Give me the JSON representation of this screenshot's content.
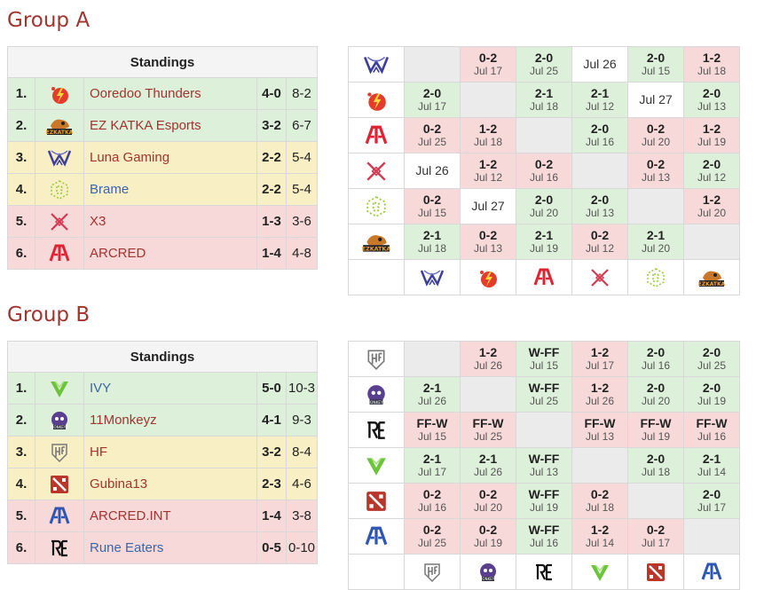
{
  "groups": [
    {
      "title": "Group A",
      "standings_header": "Standings",
      "standings": [
        {
          "rank": "1.",
          "team": "Ooredoo Thunders",
          "score": "4-0",
          "games": "8-2",
          "color": "green",
          "name_color": "red",
          "logo": "thunder-logo"
        },
        {
          "rank": "2.",
          "team": "EZ KATKA Esports",
          "score": "3-2",
          "games": "6-7",
          "color": "green",
          "name_color": "red",
          "logo": "ezkatka-logo"
        },
        {
          "rank": "3.",
          "team": "Luna Gaming",
          "score": "2-2",
          "games": "5-4",
          "color": "yellow",
          "name_color": "red",
          "logo": "luna-logo"
        },
        {
          "rank": "4.",
          "team": "Brame",
          "score": "2-2",
          "games": "5-4",
          "color": "yellow",
          "name_color": "blue",
          "logo": "brame-logo"
        },
        {
          "rank": "5.",
          "team": "X3",
          "score": "1-3",
          "games": "3-6",
          "color": "red",
          "name_color": "red",
          "logo": "x3-logo"
        },
        {
          "rank": "6.",
          "team": "ARCRED",
          "score": "1-4",
          "games": "4-8",
          "color": "red",
          "name_color": "red",
          "logo": "arcred-logo"
        }
      ],
      "matrix_row_logos": [
        "luna-logo",
        "thunder-logo",
        "arcred-logo",
        "x3-logo",
        "brame-logo",
        "ezkatka-logo"
      ],
      "matrix_col_logos": [
        "luna-logo",
        "thunder-logo",
        "arcred-logo",
        "x3-logo",
        "brame-logo",
        "ezkatka-logo"
      ],
      "matrix": [
        [
          {
            "t": "e"
          },
          {
            "t": "r",
            "s": "0-2",
            "d": "Jul 17"
          },
          {
            "t": "g",
            "s": "2-0",
            "d": "Jul 25"
          },
          {
            "t": "w",
            "d": "Jul 26"
          },
          {
            "t": "g",
            "s": "2-0",
            "d": "Jul 15"
          },
          {
            "t": "r",
            "s": "1-2",
            "d": "Jul 18"
          }
        ],
        [
          {
            "t": "g",
            "s": "2-0",
            "d": "Jul 17"
          },
          {
            "t": "e"
          },
          {
            "t": "g",
            "s": "2-1",
            "d": "Jul 18"
          },
          {
            "t": "g",
            "s": "2-1",
            "d": "Jul 12"
          },
          {
            "t": "w",
            "d": "Jul 27"
          },
          {
            "t": "g",
            "s": "2-0",
            "d": "Jul 13"
          }
        ],
        [
          {
            "t": "r",
            "s": "0-2",
            "d": "Jul 25"
          },
          {
            "t": "r",
            "s": "1-2",
            "d": "Jul 18"
          },
          {
            "t": "e"
          },
          {
            "t": "g",
            "s": "2-0",
            "d": "Jul 16"
          },
          {
            "t": "r",
            "s": "0-2",
            "d": "Jul 20"
          },
          {
            "t": "r",
            "s": "1-2",
            "d": "Jul 19"
          }
        ],
        [
          {
            "t": "w",
            "d": "Jul 26"
          },
          {
            "t": "r",
            "s": "1-2",
            "d": "Jul 12"
          },
          {
            "t": "r",
            "s": "0-2",
            "d": "Jul 16"
          },
          {
            "t": "e"
          },
          {
            "t": "r",
            "s": "0-2",
            "d": "Jul 13"
          },
          {
            "t": "g",
            "s": "2-0",
            "d": "Jul 12"
          }
        ],
        [
          {
            "t": "r",
            "s": "0-2",
            "d": "Jul 15"
          },
          {
            "t": "w",
            "d": "Jul 27"
          },
          {
            "t": "g",
            "s": "2-0",
            "d": "Jul 20"
          },
          {
            "t": "g",
            "s": "2-0",
            "d": "Jul 13"
          },
          {
            "t": "e"
          },
          {
            "t": "r",
            "s": "1-2",
            "d": "Jul 20"
          }
        ],
        [
          {
            "t": "g",
            "s": "2-1",
            "d": "Jul 18"
          },
          {
            "t": "r",
            "s": "0-2",
            "d": "Jul 13"
          },
          {
            "t": "g",
            "s": "2-1",
            "d": "Jul 19"
          },
          {
            "t": "r",
            "s": "0-2",
            "d": "Jul 12"
          },
          {
            "t": "g",
            "s": "2-1",
            "d": "Jul 20"
          },
          {
            "t": "e"
          }
        ]
      ]
    },
    {
      "title": "Group B",
      "standings_header": "Standings",
      "standings": [
        {
          "rank": "1.",
          "team": "IVY",
          "score": "5-0",
          "games": "10-3",
          "color": "green",
          "name_color": "blue",
          "logo": "ivy-logo"
        },
        {
          "rank": "2.",
          "team": "11Monkeyz",
          "score": "4-1",
          "games": "9-3",
          "color": "green",
          "name_color": "red",
          "logo": "monkeyz-logo"
        },
        {
          "rank": "3.",
          "team": "HF",
          "score": "3-2",
          "games": "8-4",
          "color": "yellow",
          "name_color": "red",
          "logo": "hf-logo"
        },
        {
          "rank": "4.",
          "team": "Gubina13",
          "score": "2-3",
          "games": "4-6",
          "color": "yellow",
          "name_color": "red",
          "logo": "dota-logo"
        },
        {
          "rank": "5.",
          "team": "ARCRED.INT",
          "score": "1-4",
          "games": "3-8",
          "color": "red",
          "name_color": "red",
          "logo": "arcredint-logo"
        },
        {
          "rank": "6.",
          "team": "Rune Eaters",
          "score": "0-5",
          "games": "0-10",
          "color": "red",
          "name_color": "blue",
          "logo": "re-logo"
        }
      ],
      "matrix_row_logos": [
        "hf-logo",
        "monkeyz-logo",
        "re-logo",
        "ivy-logo",
        "dota-logo",
        "arcredint-logo"
      ],
      "matrix_col_logos": [
        "hf-logo",
        "monkeyz-logo",
        "re-logo",
        "ivy-logo",
        "dota-logo",
        "arcredint-logo"
      ],
      "matrix": [
        [
          {
            "t": "e"
          },
          {
            "t": "r",
            "s": "1-2",
            "d": "Jul 26"
          },
          {
            "t": "g",
            "s": "W-FF",
            "d": "Jul 15"
          },
          {
            "t": "r",
            "s": "1-2",
            "d": "Jul 17"
          },
          {
            "t": "g",
            "s": "2-0",
            "d": "Jul 16"
          },
          {
            "t": "g",
            "s": "2-0",
            "d": "Jul 25"
          }
        ],
        [
          {
            "t": "g",
            "s": "2-1",
            "d": "Jul 26"
          },
          {
            "t": "e"
          },
          {
            "t": "g",
            "s": "W-FF",
            "d": "Jul 25"
          },
          {
            "t": "r",
            "s": "1-2",
            "d": "Jul 26"
          },
          {
            "t": "g",
            "s": "2-0",
            "d": "Jul 20"
          },
          {
            "t": "g",
            "s": "2-0",
            "d": "Jul 19"
          }
        ],
        [
          {
            "t": "r",
            "s": "FF-W",
            "d": "Jul 15"
          },
          {
            "t": "r",
            "s": "FF-W",
            "d": "Jul 25"
          },
          {
            "t": "e"
          },
          {
            "t": "r",
            "s": "FF-W",
            "d": "Jul 13"
          },
          {
            "t": "r",
            "s": "FF-W",
            "d": "Jul 19"
          },
          {
            "t": "r",
            "s": "FF-W",
            "d": "Jul 16"
          }
        ],
        [
          {
            "t": "g",
            "s": "2-1",
            "d": "Jul 17"
          },
          {
            "t": "g",
            "s": "2-1",
            "d": "Jul 26"
          },
          {
            "t": "g",
            "s": "W-FF",
            "d": "Jul 13"
          },
          {
            "t": "e"
          },
          {
            "t": "g",
            "s": "2-0",
            "d": "Jul 18"
          },
          {
            "t": "g",
            "s": "2-1",
            "d": "Jul 14"
          }
        ],
        [
          {
            "t": "r",
            "s": "0-2",
            "d": "Jul 16"
          },
          {
            "t": "r",
            "s": "0-2",
            "d": "Jul 20"
          },
          {
            "t": "g",
            "s": "W-FF",
            "d": "Jul 19"
          },
          {
            "t": "r",
            "s": "0-2",
            "d": "Jul 18"
          },
          {
            "t": "e"
          },
          {
            "t": "g",
            "s": "2-0",
            "d": "Jul 17"
          }
        ],
        [
          {
            "t": "r",
            "s": "0-2",
            "d": "Jul 25"
          },
          {
            "t": "r",
            "s": "0-2",
            "d": "Jul 19"
          },
          {
            "t": "g",
            "s": "W-FF",
            "d": "Jul 16"
          },
          {
            "t": "r",
            "s": "1-2",
            "d": "Jul 14"
          },
          {
            "t": "r",
            "s": "0-2",
            "d": "Jul 17"
          },
          {
            "t": "e"
          }
        ]
      ]
    }
  ],
  "colors": {
    "green": "#ddf0d9",
    "yellow": "#f9efc4",
    "red": "#f8d9d9",
    "title": "#a0342f",
    "link_blue": "#3b66a8"
  }
}
